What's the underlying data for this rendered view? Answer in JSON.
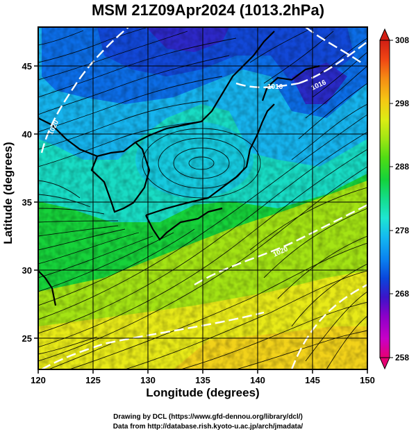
{
  "title": "MSM 21Z09Apr2024 (1013.2hPa)",
  "footer": {
    "drawing_credit": "Drawing by DCL (https://www.gfd-dennou.org/library/dcl/)",
    "data_credit": "Data from http://database.rish.kyoto-u.ac.jp/arch/jmadata/"
  },
  "map": {
    "xlabel": "Longitude (degrees)",
    "ylabel": "Latitude  (degrees)",
    "lon_range": [
      120,
      150
    ],
    "lat_range": [
      22.4,
      47.6
    ],
    "lon_ticks": [
      120,
      125,
      130,
      135,
      140,
      145,
      150
    ],
    "lat_ticks": [
      25,
      30,
      35,
      40,
      45
    ],
    "field": "surface temperature (K)",
    "isobar_labels": [
      "1020",
      "1016",
      "1016",
      "1020"
    ],
    "colorbar": {
      "min": 258,
      "max": 308,
      "tick_labels": [
        "308",
        "298",
        "288",
        "278",
        "268",
        "258"
      ],
      "colors": [
        "#e60073",
        "#c800c8",
        "#8c00c8",
        "#3c14c8",
        "#0a46dc",
        "#0a82f0",
        "#14b9f0",
        "#1ee6d2",
        "#14dc8c",
        "#14d23c",
        "#50dc14",
        "#a0e614",
        "#dcec14",
        "#f5c814",
        "#f58c14",
        "#f04614",
        "#d21e14"
      ]
    }
  }
}
